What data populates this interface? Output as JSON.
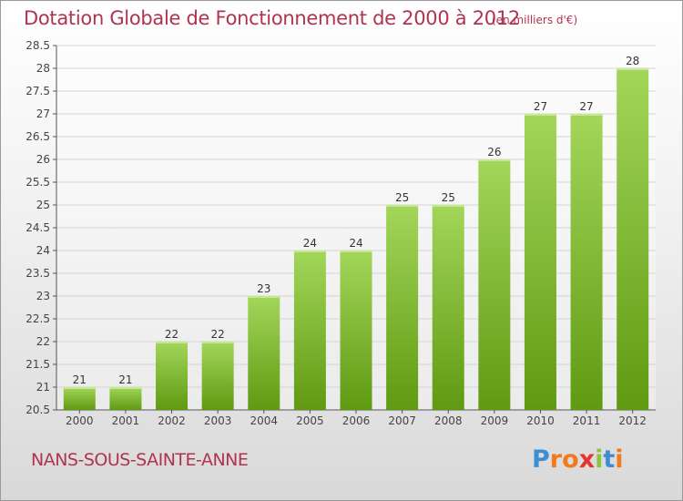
{
  "header": {
    "title": "Dotation Globale de Fonctionnement de 2000 à 2012",
    "subtitle": "(en milliers d'€)"
  },
  "footer": {
    "commune": "NANS-SOUS-SAINTE-ANNE",
    "logo_text": "Proxiti",
    "logo_letters": [
      {
        "char": "P",
        "color": "#3d8fd1"
      },
      {
        "char": "r",
        "color": "#f07b1e"
      },
      {
        "char": "o",
        "color": "#f07b1e"
      },
      {
        "char": "x",
        "color": "#e5342f"
      },
      {
        "char": "i",
        "color": "#8cc63f"
      },
      {
        "char": "t",
        "color": "#3d8fd1"
      },
      {
        "char": "i",
        "color": "#f07b1e"
      }
    ]
  },
  "colors": {
    "bar_top": "#a3d65a",
    "bar_bottom": "#5f9a12",
    "title": "#b0334f",
    "grid": "#d4d4d4"
  },
  "chart_data": {
    "type": "bar",
    "categories": [
      "2000",
      "2001",
      "2002",
      "2003",
      "2004",
      "2005",
      "2006",
      "2007",
      "2008",
      "2009",
      "2010",
      "2011",
      "2012"
    ],
    "values": [
      21,
      21,
      22,
      22,
      23,
      24,
      24,
      25,
      25,
      26,
      27,
      27,
      28
    ],
    "value_labels": [
      "21",
      "21",
      "22",
      "22",
      "23",
      "24",
      "24",
      "25",
      "25",
      "26",
      "27",
      "27",
      "28"
    ],
    "yticks": [
      "20.5",
      "21",
      "21.5",
      "22",
      "22.5",
      "23",
      "23.5",
      "24",
      "24.5",
      "25",
      "25.5",
      "26",
      "26.5",
      "27",
      "27.5",
      "28",
      "28.5"
    ],
    "ylim": [
      20.5,
      28.5
    ],
    "grid": true,
    "title": "Dotation Globale de Fonctionnement de 2000 à 2012",
    "xlabel": "",
    "ylabel": ""
  }
}
